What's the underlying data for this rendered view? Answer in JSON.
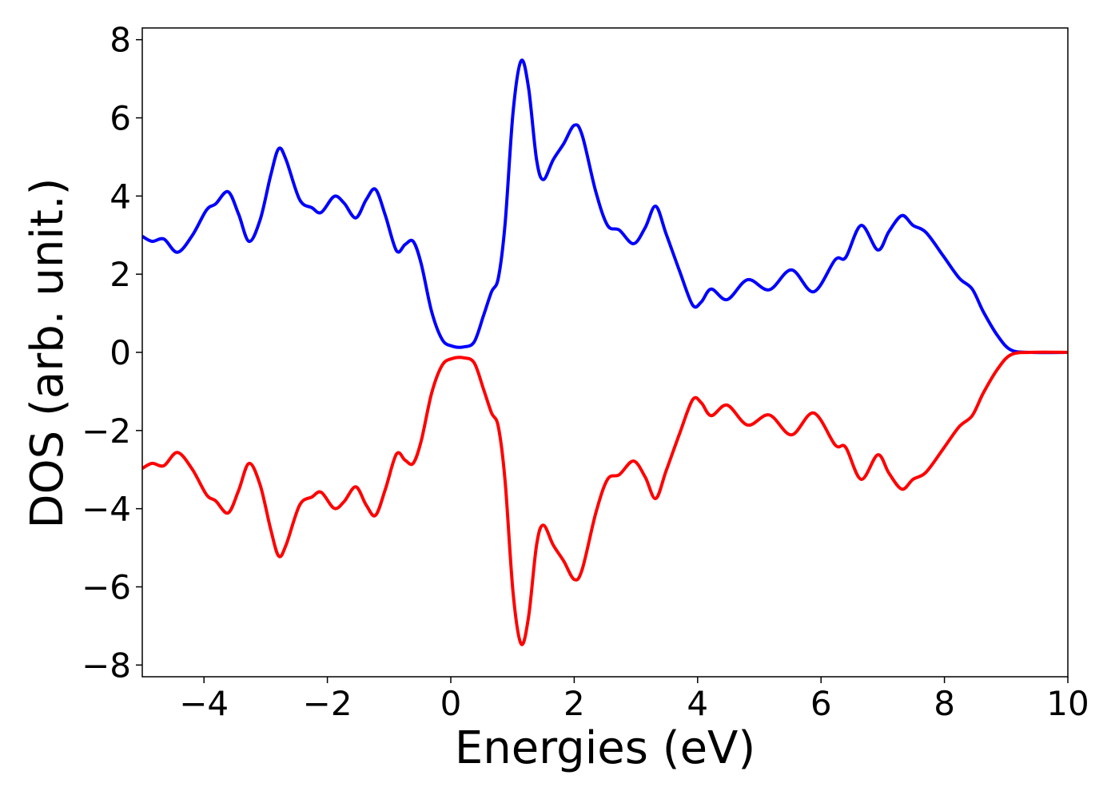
{
  "chart_data": {
    "type": "line",
    "x_label": "Energies (eV)",
    "y_label": "DOS (arb. unit.)",
    "x": [
      -5,
      -4.84,
      -4.65,
      -4.43,
      -4.19,
      -3.96,
      -3.81,
      -3.61,
      -3.44,
      -3.27,
      -3.09,
      -2.92,
      -2.79,
      -2.67,
      -2.45,
      -2.25,
      -2.1,
      -1.89,
      -1.73,
      -1.54,
      -1.37,
      -1.22,
      -1.06,
      -0.88,
      -0.74,
      -0.61,
      -0.48,
      -0.31,
      -0.14,
      0.02,
      0.21,
      0.38,
      0.53,
      0.66,
      0.77,
      0.88,
      1.01,
      1.14,
      1.26,
      1.39,
      1.5,
      1.66,
      1.83,
      2.0,
      2.13,
      2.35,
      2.54,
      2.73,
      2.96,
      3.15,
      3.32,
      3.49,
      3.71,
      3.92,
      4.06,
      4.22,
      4.48,
      4.81,
      5.16,
      5.52,
      5.88,
      6.23,
      6.4,
      6.65,
      6.92,
      7.1,
      7.31,
      7.49,
      7.7,
      7.98,
      8.24,
      8.45,
      8.63,
      8.86,
      9.08,
      9.41,
      10
    ],
    "series": [
      {
        "color": "#0000ff",
        "values": [
          2.97,
          2.84,
          2.9,
          2.56,
          2.99,
          3.64,
          3.8,
          4.11,
          3.54,
          2.84,
          3.39,
          4.52,
          5.21,
          4.93,
          3.91,
          3.7,
          3.58,
          3.99,
          3.82,
          3.44,
          3.91,
          4.17,
          3.5,
          2.6,
          2.76,
          2.84,
          2.27,
          1.04,
          0.33,
          0.16,
          0.14,
          0.27,
          0.94,
          1.55,
          1.9,
          3.29,
          6.16,
          7.46,
          6.77,
          4.93,
          4.42,
          4.93,
          5.34,
          5.81,
          5.55,
          4.11,
          3.25,
          3.13,
          2.78,
          3.19,
          3.74,
          3.03,
          2.07,
          1.21,
          1.29,
          1.62,
          1.35,
          1.86,
          1.6,
          2.11,
          1.55,
          2.37,
          2.43,
          3.25,
          2.62,
          3.09,
          3.5,
          3.25,
          3.07,
          2.47,
          1.9,
          1.62,
          1.04,
          0.43,
          0.06,
          0,
          0
        ]
      },
      {
        "color": "#ff0000",
        "values": [
          -2.97,
          -2.84,
          -2.9,
          -2.56,
          -2.99,
          -3.64,
          -3.8,
          -4.11,
          -3.54,
          -2.84,
          -3.39,
          -4.52,
          -5.21,
          -4.93,
          -3.91,
          -3.7,
          -3.58,
          -3.99,
          -3.82,
          -3.44,
          -3.91,
          -4.17,
          -3.5,
          -2.6,
          -2.76,
          -2.84,
          -2.27,
          -1.04,
          -0.33,
          -0.16,
          -0.14,
          -0.27,
          -0.94,
          -1.55,
          -1.9,
          -3.29,
          -6.16,
          -7.46,
          -6.77,
          -4.93,
          -4.42,
          -4.93,
          -5.34,
          -5.81,
          -5.55,
          -4.11,
          -3.25,
          -3.13,
          -2.78,
          -3.19,
          -3.74,
          -3.03,
          -2.07,
          -1.21,
          -1.29,
          -1.62,
          -1.35,
          -1.86,
          -1.6,
          -2.11,
          -1.55,
          -2.37,
          -2.43,
          -3.25,
          -2.62,
          -3.09,
          -3.5,
          -3.25,
          -3.07,
          -2.47,
          -1.9,
          -1.62,
          -1.04,
          -0.43,
          -0.06,
          0,
          0
        ]
      }
    ],
    "xlim": [
      -5,
      10
    ],
    "ylim": [
      -8.3,
      8.3
    ],
    "xticks": [
      {
        "value": -4,
        "label": "−4"
      },
      {
        "value": -2,
        "label": "−2"
      },
      0,
      2,
      4,
      6,
      8,
      10
    ],
    "yticks": [
      {
        "value": -8,
        "label": "−8"
      },
      {
        "value": -6,
        "label": "−6"
      },
      {
        "value": -4,
        "label": "−4"
      },
      {
        "value": -2,
        "label": "−2"
      },
      0,
      2,
      4,
      6,
      8
    ],
    "grid": false
  }
}
